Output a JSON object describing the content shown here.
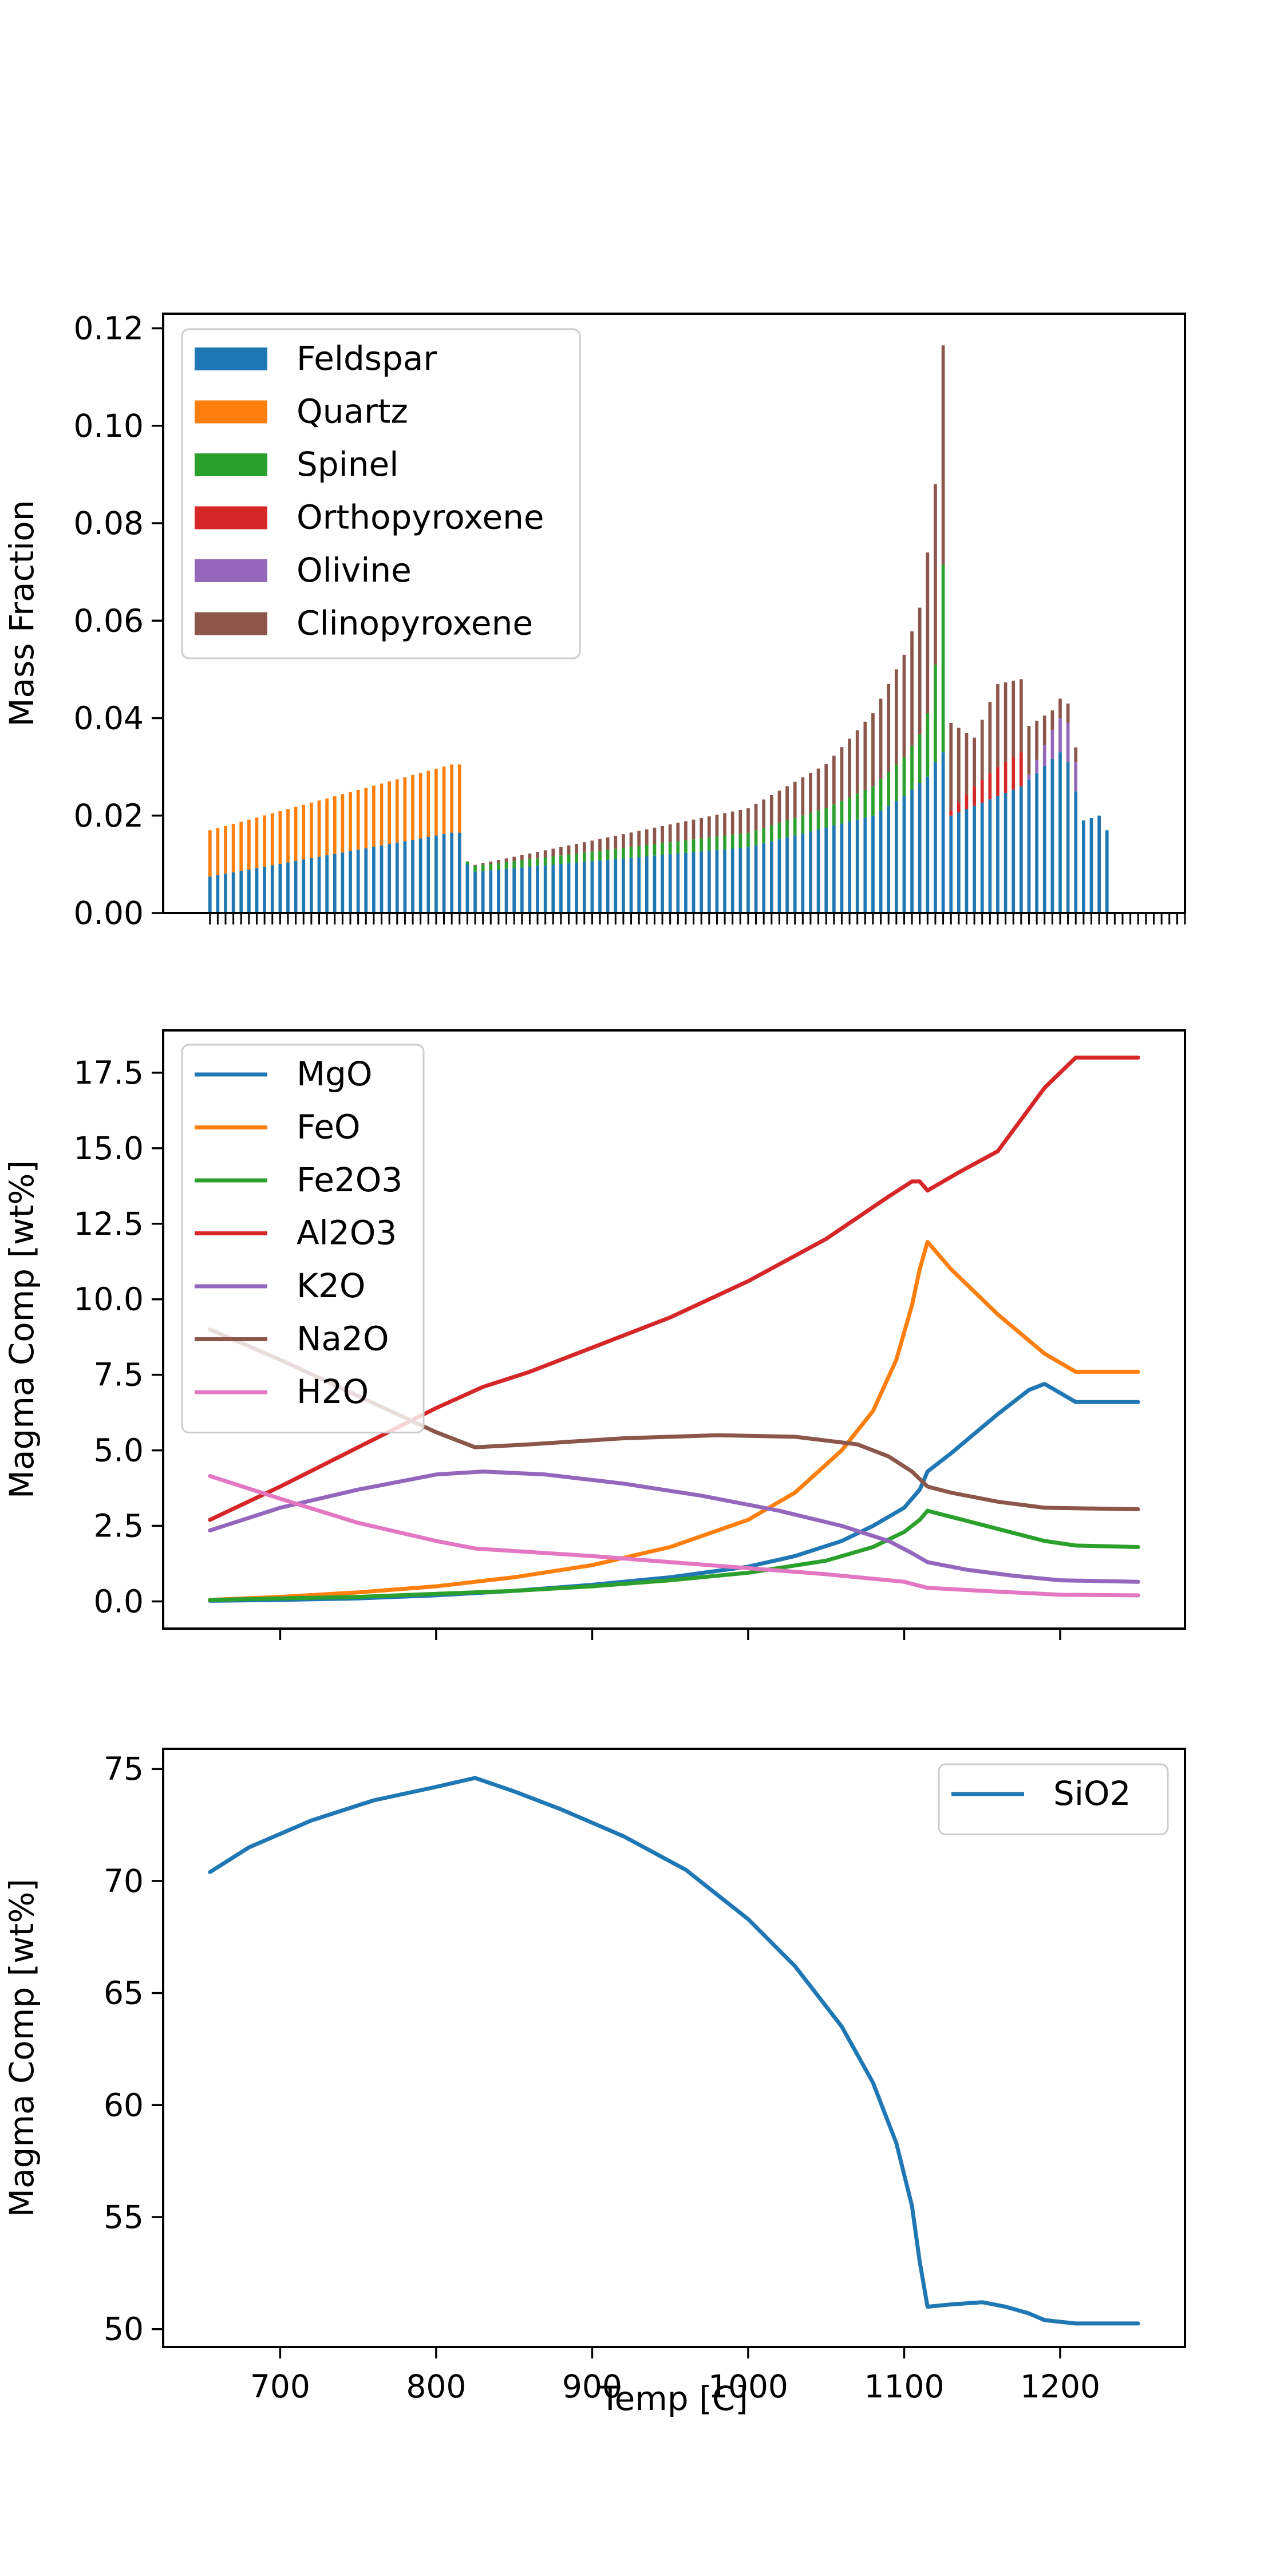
{
  "chart_data": [
    {
      "type": "bar",
      "stacked": true,
      "ylabel": "Mass Fraction",
      "xlabel": "",
      "xlim": [
        625,
        1280
      ],
      "ylim": [
        0,
        0.123
      ],
      "yticks": [
        0.0,
        0.02,
        0.04,
        0.06,
        0.08,
        0.1,
        0.12
      ],
      "ytick_labels": [
        "0.00",
        "0.02",
        "0.04",
        "0.06",
        "0.08",
        "0.10",
        "0.12"
      ],
      "x_ticks_labeled": false,
      "legend_position": "upper-left",
      "bar_step": 5,
      "x_start": 655,
      "x_end": 1250,
      "legend": [
        "Feldspar",
        "Quartz",
        "Spinel",
        "Orthopyroxene",
        "Olivine",
        "Clinopyroxene"
      ],
      "colors": {
        "Feldspar": "#1f77b4",
        "Quartz": "#ff7f0e",
        "Spinel": "#2ca02c",
        "Orthopyroxene": "#d62728",
        "Olivine": "#9467bd",
        "Clinopyroxene": "#8c564b"
      },
      "series_profiles": {
        "Feldspar": [
          [
            655,
            0.0075
          ],
          [
            810,
            0.0165
          ],
          [
            815,
            0.0165
          ],
          [
            820,
            0.01
          ],
          [
            825,
            0.0085
          ],
          [
            1000,
            0.0135
          ],
          [
            1080,
            0.02
          ],
          [
            1100,
            0.024
          ],
          [
            1115,
            0.028
          ],
          [
            1120,
            0.031
          ],
          [
            1125,
            0.033
          ],
          [
            1130,
            0.02
          ],
          [
            1160,
            0.024
          ],
          [
            1175,
            0.026
          ],
          [
            1200,
            0.033
          ],
          [
            1205,
            0.031
          ],
          [
            1215,
            0.019
          ],
          [
            1225,
            0.02
          ],
          [
            1230,
            0.017
          ],
          [
            1235,
            0.0
          ]
        ],
        "Quartz": [
          [
            655,
            0.0095
          ],
          [
            810,
            0.014
          ],
          [
            815,
            0.014
          ],
          [
            820,
            0.0
          ],
          [
            1250,
            0.0
          ]
        ],
        "Spinel": [
          [
            655,
            0.0
          ],
          [
            815,
            0.0
          ],
          [
            825,
            0.0012
          ],
          [
            1000,
            0.003
          ],
          [
            1050,
            0.004
          ],
          [
            1080,
            0.006
          ],
          [
            1100,
            0.008
          ],
          [
            1110,
            0.01
          ],
          [
            1115,
            0.013
          ],
          [
            1120,
            0.02
          ],
          [
            1125,
            0.0385
          ],
          [
            1130,
            0.0
          ],
          [
            1250,
            0.0
          ]
        ],
        "Orthopyroxene": [
          [
            655,
            0.0
          ],
          [
            1125,
            0.0
          ],
          [
            1130,
            0.001
          ],
          [
            1145,
            0.004
          ],
          [
            1160,
            0.006
          ],
          [
            1175,
            0.007
          ],
          [
            1180,
            0.0
          ],
          [
            1250,
            0.0
          ]
        ],
        "Olivine": [
          [
            655,
            0.0
          ],
          [
            1175,
            0.0
          ],
          [
            1180,
            0.001
          ],
          [
            1195,
            0.006
          ],
          [
            1205,
            0.008
          ],
          [
            1210,
            0.006
          ],
          [
            1215,
            0.0
          ],
          [
            1250,
            0.0
          ]
        ],
        "Clinopyroxene": [
          [
            655,
            0.0
          ],
          [
            820,
            0.0
          ],
          [
            825,
            0.0002
          ],
          [
            1000,
            0.005
          ],
          [
            1050,
            0.009
          ],
          [
            1080,
            0.015
          ],
          [
            1100,
            0.021
          ],
          [
            1110,
            0.026
          ],
          [
            1115,
            0.033
          ],
          [
            1120,
            0.037
          ],
          [
            1125,
            0.045
          ],
          [
            1130,
            0.018
          ],
          [
            1145,
            0.01
          ],
          [
            1160,
            0.017
          ],
          [
            1175,
            0.015
          ],
          [
            1180,
            0.01
          ],
          [
            1195,
            0.004
          ],
          [
            1205,
            0.004
          ],
          [
            1210,
            0.003
          ],
          [
            1215,
            0.0
          ],
          [
            1250,
            0.0
          ]
        ]
      }
    },
    {
      "type": "line",
      "ylabel": "Magma Comp [wt%]",
      "xlabel": "",
      "xlim": [
        625,
        1280
      ],
      "ylim": [
        -0.9,
        18.9
      ],
      "yticks": [
        0.0,
        2.5,
        5.0,
        7.5,
        10.0,
        12.5,
        15.0,
        17.5
      ],
      "ytick_labels": [
        "0.0",
        "2.5",
        "5.0",
        "7.5",
        "10.0",
        "12.5",
        "15.0",
        "17.5"
      ],
      "xticks": [
        700,
        800,
        900,
        1000,
        1100,
        1200
      ],
      "x_ticks_labeled": false,
      "legend_position": "upper-left",
      "series": [
        {
          "name": "MgO",
          "color": "#1f77b4",
          "points": [
            [
              655,
              0.02
            ],
            [
              700,
              0.05
            ],
            [
              750,
              0.1
            ],
            [
              800,
              0.2
            ],
            [
              850,
              0.35
            ],
            [
              900,
              0.55
            ],
            [
              950,
              0.8
            ],
            [
              1000,
              1.15
            ],
            [
              1030,
              1.5
            ],
            [
              1060,
              2.0
            ],
            [
              1080,
              2.5
            ],
            [
              1100,
              3.1
            ],
            [
              1110,
              3.7
            ],
            [
              1115,
              4.3
            ],
            [
              1130,
              4.9
            ],
            [
              1160,
              6.2
            ],
            [
              1180,
              7.0
            ],
            [
              1190,
              7.2
            ],
            [
              1210,
              6.6
            ],
            [
              1250,
              6.6
            ]
          ]
        },
        {
          "name": "FeO",
          "color": "#ff7f0e",
          "points": [
            [
              655,
              0.05
            ],
            [
              700,
              0.15
            ],
            [
              750,
              0.3
            ],
            [
              800,
              0.5
            ],
            [
              850,
              0.8
            ],
            [
              900,
              1.2
            ],
            [
              950,
              1.8
            ],
            [
              1000,
              2.7
            ],
            [
              1030,
              3.6
            ],
            [
              1060,
              5.0
            ],
            [
              1080,
              6.3
            ],
            [
              1095,
              8.0
            ],
            [
              1105,
              9.8
            ],
            [
              1110,
              11.0
            ],
            [
              1115,
              11.9
            ],
            [
              1130,
              11.0
            ],
            [
              1160,
              9.5
            ],
            [
              1190,
              8.2
            ],
            [
              1210,
              7.6
            ],
            [
              1250,
              7.6
            ]
          ]
        },
        {
          "name": "Fe2O3",
          "color": "#2ca02c",
          "points": [
            [
              655,
              0.05
            ],
            [
              700,
              0.1
            ],
            [
              750,
              0.15
            ],
            [
              800,
              0.25
            ],
            [
              850,
              0.35
            ],
            [
              900,
              0.5
            ],
            [
              950,
              0.7
            ],
            [
              1000,
              0.95
            ],
            [
              1050,
              1.35
            ],
            [
              1080,
              1.8
            ],
            [
              1100,
              2.3
            ],
            [
              1110,
              2.7
            ],
            [
              1115,
              3.0
            ],
            [
              1130,
              2.8
            ],
            [
              1160,
              2.4
            ],
            [
              1190,
              2.0
            ],
            [
              1210,
              1.85
            ],
            [
              1250,
              1.8
            ]
          ]
        },
        {
          "name": "Al2O3",
          "color": "#d62728",
          "points": [
            [
              655,
              2.7
            ],
            [
              700,
              3.8
            ],
            [
              750,
              5.1
            ],
            [
              800,
              6.4
            ],
            [
              830,
              7.1
            ],
            [
              860,
              7.6
            ],
            [
              900,
              8.4
            ],
            [
              950,
              9.4
            ],
            [
              1000,
              10.6
            ],
            [
              1050,
              12.0
            ],
            [
              1090,
              13.4
            ],
            [
              1105,
              13.9
            ],
            [
              1110,
              13.9
            ],
            [
              1115,
              13.6
            ],
            [
              1135,
              14.2
            ],
            [
              1160,
              14.9
            ],
            [
              1170,
              15.6
            ],
            [
              1190,
              17.0
            ],
            [
              1210,
              18.0
            ],
            [
              1250,
              18.0
            ]
          ]
        },
        {
          "name": "K2O",
          "color": "#9467bd",
          "points": [
            [
              655,
              2.35
            ],
            [
              700,
              3.1
            ],
            [
              750,
              3.7
            ],
            [
              800,
              4.2
            ],
            [
              830,
              4.3
            ],
            [
              870,
              4.2
            ],
            [
              920,
              3.9
            ],
            [
              970,
              3.5
            ],
            [
              1020,
              3.0
            ],
            [
              1060,
              2.5
            ],
            [
              1090,
              2.0
            ],
            [
              1105,
              1.6
            ],
            [
              1115,
              1.3
            ],
            [
              1140,
              1.05
            ],
            [
              1170,
              0.85
            ],
            [
              1200,
              0.7
            ],
            [
              1250,
              0.65
            ]
          ]
        },
        {
          "name": "Na2O",
          "color": "#8c564b",
          "points": [
            [
              655,
              9.0
            ],
            [
              700,
              8.0
            ],
            [
              750,
              6.8
            ],
            [
              800,
              5.6
            ],
            [
              825,
              5.1
            ],
            [
              860,
              5.2
            ],
            [
              920,
              5.4
            ],
            [
              980,
              5.5
            ],
            [
              1030,
              5.45
            ],
            [
              1070,
              5.2
            ],
            [
              1090,
              4.8
            ],
            [
              1105,
              4.3
            ],
            [
              1115,
              3.8
            ],
            [
              1130,
              3.6
            ],
            [
              1160,
              3.3
            ],
            [
              1190,
              3.1
            ],
            [
              1250,
              3.05
            ]
          ]
        },
        {
          "name": "H2O",
          "color": "#e377c2",
          "points": [
            [
              655,
              4.15
            ],
            [
              700,
              3.4
            ],
            [
              750,
              2.6
            ],
            [
              800,
              2.0
            ],
            [
              825,
              1.75
            ],
            [
              900,
              1.5
            ],
            [
              950,
              1.3
            ],
            [
              1000,
              1.1
            ],
            [
              1050,
              0.9
            ],
            [
              1100,
              0.65
            ],
            [
              1115,
              0.45
            ],
            [
              1150,
              0.35
            ],
            [
              1200,
              0.22
            ],
            [
              1250,
              0.2
            ]
          ]
        }
      ]
    },
    {
      "type": "line",
      "ylabel": "Magma Comp [wt%]",
      "xlabel": "Temp [C]",
      "xlim": [
        625,
        1280
      ],
      "ylim": [
        49.2,
        75.9
      ],
      "yticks": [
        50,
        55,
        60,
        65,
        70,
        75
      ],
      "ytick_labels": [
        "50",
        "55",
        "60",
        "65",
        "70",
        "75"
      ],
      "xticks": [
        700,
        800,
        900,
        1000,
        1100,
        1200
      ],
      "xtick_labels": [
        "700",
        "800",
        "900",
        "1000",
        "1100",
        "1200"
      ],
      "legend_position": "upper-right",
      "series": [
        {
          "name": "SiO2",
          "color": "#1f77b4",
          "points": [
            [
              655,
              70.4
            ],
            [
              680,
              71.5
            ],
            [
              720,
              72.7
            ],
            [
              760,
              73.6
            ],
            [
              800,
              74.2
            ],
            [
              825,
              74.6
            ],
            [
              850,
              74.0
            ],
            [
              880,
              73.2
            ],
            [
              920,
              72.0
            ],
            [
              960,
              70.5
            ],
            [
              1000,
              68.3
            ],
            [
              1030,
              66.2
            ],
            [
              1060,
              63.5
            ],
            [
              1080,
              61.0
            ],
            [
              1095,
              58.3
            ],
            [
              1105,
              55.5
            ],
            [
              1110,
              53.0
            ],
            [
              1115,
              51.0
            ],
            [
              1130,
              51.1
            ],
            [
              1150,
              51.2
            ],
            [
              1165,
              51.0
            ],
            [
              1180,
              50.7
            ],
            [
              1190,
              50.4
            ],
            [
              1210,
              50.25
            ],
            [
              1250,
              50.25
            ]
          ]
        }
      ]
    }
  ]
}
